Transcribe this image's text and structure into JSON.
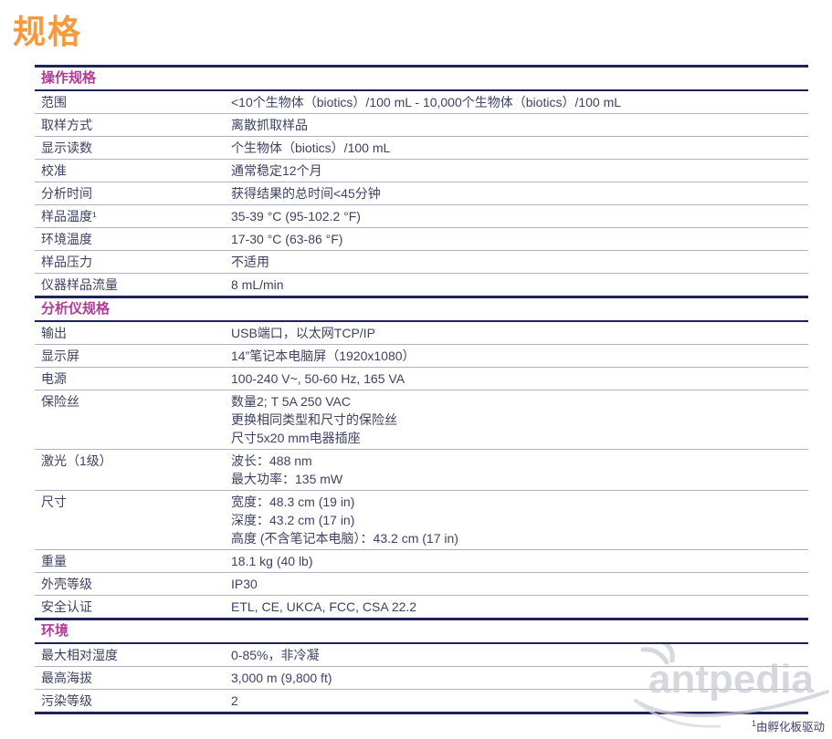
{
  "page": {
    "title": "规格"
  },
  "colors": {
    "accent_orange": "#F8993B",
    "section_magenta": "#B23A97",
    "line_navy": "#1F2257",
    "text": "#3E4263",
    "separator": "#AEB2C8",
    "watermark_gray": "#C9CAD0"
  },
  "table": {
    "sections": [
      {
        "title": "操作规格",
        "rows": [
          {
            "label": "范围",
            "values": [
              "<10个生物体（biotics）/100 mL - 10,000个生物体（biotics）/100 mL"
            ]
          },
          {
            "label": "取样方式",
            "values": [
              "离散抓取样品"
            ]
          },
          {
            "label": "显示读数",
            "values": [
              "个生物体（biotics）/100 mL"
            ]
          },
          {
            "label": "校准",
            "values": [
              "通常稳定12个月"
            ]
          },
          {
            "label": "分析时间",
            "values": [
              "获得结果的总时间<45分钟"
            ]
          },
          {
            "label": "样品温度¹",
            "values": [
              "35-39 °C (95-102.2 °F)"
            ]
          },
          {
            "label": "环境温度",
            "values": [
              "17-30 °C (63-86 °F)"
            ]
          },
          {
            "label": "样品压力",
            "values": [
              "不适用"
            ]
          },
          {
            "label": "仪器样品流量",
            "values": [
              "8 mL/min"
            ]
          }
        ]
      },
      {
        "title": "分析仪规格",
        "rows": [
          {
            "label": "输出",
            "values": [
              "USB端口，以太网TCP/IP"
            ]
          },
          {
            "label": "显示屏",
            "values": [
              "14”笔记本电脑屏（1920x1080）"
            ]
          },
          {
            "label": "电源",
            "values": [
              "100-240 V~, 50-60 Hz, 165 VA"
            ]
          },
          {
            "label": "保险丝",
            "values": [
              "数量2; T 5A 250 VAC",
              "更换相同类型和尺寸的保险丝",
              "尺寸5x20 mm电器插座"
            ]
          },
          {
            "label": "激光（1级）",
            "values": [
              "波长：488 nm",
              "最大功率：135 mW"
            ]
          },
          {
            "label": "尺寸",
            "values": [
              "宽度：48.3 cm (19 in)",
              "深度：43.2 cm (17 in)",
              "高度 (不含笔记本电脑）：43.2 cm (17 in)"
            ]
          },
          {
            "label": "重量",
            "values": [
              "18.1 kg (40 lb)"
            ]
          },
          {
            "label": "外壳等级",
            "values": [
              "IP30"
            ]
          },
          {
            "label": "安全认证",
            "values": [
              "ETL, CE, UKCA, FCC, CSA 22.2"
            ]
          }
        ]
      },
      {
        "title": "环境",
        "rows": [
          {
            "label": "最大相对湿度",
            "values": [
              "0-85%，非冷凝"
            ]
          },
          {
            "label": "最高海拔",
            "values": [
              "3,000 m (9,800 ft)"
            ]
          },
          {
            "label": "污染等级",
            "values": [
              "2"
            ]
          }
        ]
      }
    ]
  },
  "watermark": {
    "text": "antpedia"
  },
  "footnote": {
    "marker": "1",
    "text": "由孵化板驱动"
  }
}
